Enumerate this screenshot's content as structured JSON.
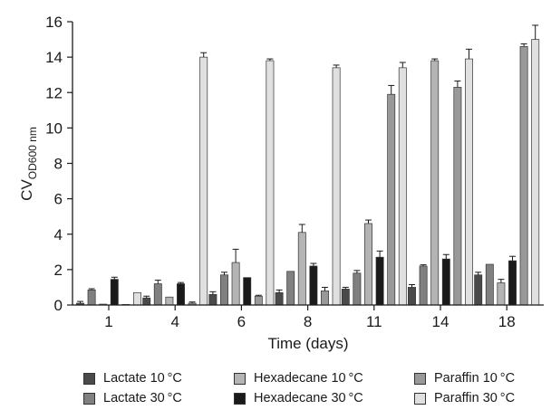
{
  "chart_data": {
    "type": "bar",
    "title": "",
    "xlabel": "Time (days)",
    "ylabel": "CV",
    "ylabel_sub": "OD600 nm",
    "ylim": [
      0,
      16
    ],
    "yticks": [
      0,
      2,
      4,
      6,
      8,
      10,
      12,
      14,
      16
    ],
    "categories": [
      "1",
      "4",
      "6",
      "8",
      "11",
      "14",
      "18"
    ],
    "grid": false,
    "legend_position": "bottom",
    "series": [
      {
        "name": "Lactate 10 °C",
        "color": "#4a4a4a",
        "values": [
          0.1,
          0.4,
          0.6,
          0.7,
          0.9,
          1.0,
          1.7
        ],
        "errors": [
          0.1,
          0.1,
          0.15,
          0.15,
          0.1,
          0.15,
          0.15
        ]
      },
      {
        "name": "Lactate 30 °C",
        "color": "#808080",
        "values": [
          0.85,
          1.2,
          1.7,
          1.9,
          1.8,
          2.2,
          2.3
        ],
        "errors": [
          0.07,
          0.2,
          0.15,
          0.0,
          0.15,
          0.07,
          0.0
        ]
      },
      {
        "name": "Hexadecane 10 °C",
        "color": "#b4b4b4",
        "values": [
          0.05,
          0.45,
          2.4,
          4.1,
          4.6,
          13.8,
          1.25
        ],
        "errors": [
          0.0,
          0.0,
          0.75,
          0.45,
          0.2,
          0.1,
          0.2
        ]
      },
      {
        "name": "Hexadecane 30 °C",
        "color": "#1a1a1a",
        "values": [
          1.45,
          1.2,
          1.55,
          2.2,
          2.7,
          2.6,
          2.5
        ],
        "errors": [
          0.12,
          0.07,
          0.0,
          0.15,
          0.35,
          0.25,
          0.25
        ]
      },
      {
        "name": "Paraffin 10 °C",
        "color": "#999999",
        "values": [
          0.0,
          0.1,
          0.5,
          0.8,
          11.9,
          12.3,
          14.6
        ],
        "errors": [
          0.0,
          0.07,
          0.05,
          0.2,
          0.5,
          0.35,
          0.15
        ]
      },
      {
        "name": "Paraffin 30 °C",
        "color": "#e0e0e0",
        "values": [
          0.7,
          14.0,
          13.8,
          13.4,
          13.4,
          13.9,
          15.0
        ],
        "errors": [
          0.0,
          0.25,
          0.1,
          0.15,
          0.3,
          0.55,
          0.8
        ]
      }
    ]
  },
  "legend": {
    "items": [
      {
        "label": "Lactate 10 °C",
        "color": "#4a4a4a"
      },
      {
        "label": "Hexadecane 10 °C",
        "color": "#b4b4b4"
      },
      {
        "label": "Paraffin 10 °C",
        "color": "#999999"
      },
      {
        "label": "Lactate 30 °C",
        "color": "#808080"
      },
      {
        "label": "Hexadecane 30 °C",
        "color": "#1a1a1a"
      },
      {
        "label": "Paraffin 30 °C",
        "color": "#e0e0e0"
      }
    ]
  }
}
